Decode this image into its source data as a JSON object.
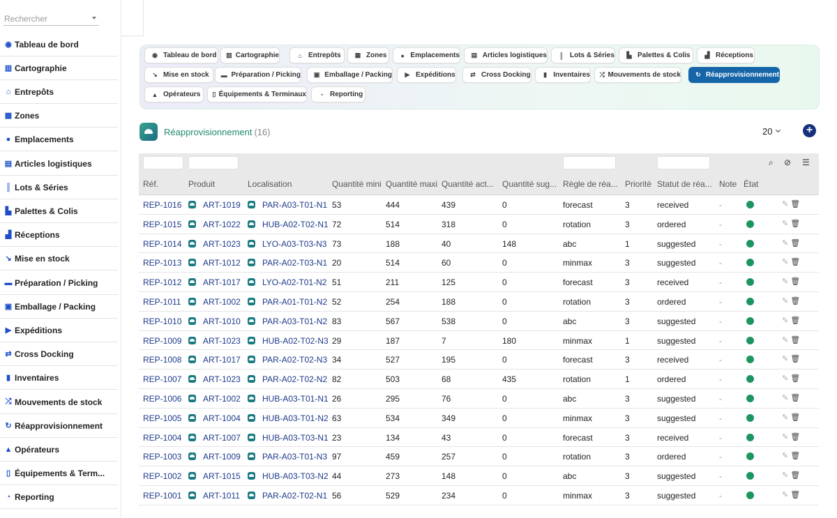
{
  "search": {
    "placeholder": "Rechercher"
  },
  "sidebar": {
    "items": [
      {
        "label": "Tableau de bord",
        "icon": "dashboard-icon",
        "glyph": "◉"
      },
      {
        "label": "Cartographie",
        "icon": "map-icon",
        "glyph": "▥"
      },
      {
        "label": "Entrepôts",
        "icon": "warehouse-icon",
        "glyph": "⌂"
      },
      {
        "label": "Zones",
        "icon": "grid-icon",
        "glyph": "▦"
      },
      {
        "label": "Emplacements",
        "icon": "location-pin-icon",
        "glyph": "●"
      },
      {
        "label": "Articles logistiques",
        "icon": "boxes-icon",
        "glyph": "▤"
      },
      {
        "label": "Lots & Séries",
        "icon": "barcode-icon",
        "glyph": "║"
      },
      {
        "label": "Palettes & Colis",
        "icon": "pallet-icon",
        "glyph": "▙"
      },
      {
        "label": "Réceptions",
        "icon": "truck-ramp-icon",
        "glyph": "▟"
      },
      {
        "label": "Mise en stock",
        "icon": "dolly-icon",
        "glyph": "↘"
      },
      {
        "label": "Préparation / Picking",
        "icon": "pallet-jack-icon",
        "glyph": "▬"
      },
      {
        "label": "Emballage / Packing",
        "icon": "package-icon",
        "glyph": "▣"
      },
      {
        "label": "Expéditions",
        "icon": "truck-icon",
        "glyph": "▶"
      },
      {
        "label": "Cross Docking",
        "icon": "exchange-icon",
        "glyph": "⇄"
      },
      {
        "label": "Inventaires",
        "icon": "clipboard-check-icon",
        "glyph": "▮"
      },
      {
        "label": "Mouvements de stock",
        "icon": "shuffle-icon",
        "glyph": "⤮"
      },
      {
        "label": "Réapprovisionnement",
        "icon": "sync-icon",
        "glyph": "↻"
      },
      {
        "label": "Opérateurs",
        "icon": "operator-icon",
        "glyph": "▲"
      },
      {
        "label": "Équipements & Term...",
        "icon": "mobile-icon",
        "glyph": "▯"
      },
      {
        "label": "Reporting",
        "icon": "pie-chart-icon",
        "glyph": "◔"
      }
    ]
  },
  "tabs": [
    {
      "label": "Tableau de bord",
      "icon": "dashboard-icon",
      "glyph": "◉"
    },
    {
      "label": "Cartographie",
      "icon": "map-icon",
      "glyph": "▥"
    },
    {
      "label": "Entrepôts",
      "icon": "warehouse-icon",
      "glyph": "⌂"
    },
    {
      "label": "Zones",
      "icon": "grid-icon",
      "glyph": "▦"
    },
    {
      "label": "Emplacements",
      "icon": "location-pin-icon",
      "glyph": "●"
    },
    {
      "label": "Articles logistiques",
      "icon": "boxes-icon",
      "glyph": "▤"
    },
    {
      "label": "Lots & Séries",
      "icon": "barcode-icon",
      "glyph": "║"
    },
    {
      "label": "Palettes & Colis",
      "icon": "pallet-icon",
      "glyph": "▙"
    },
    {
      "label": "Réceptions",
      "icon": "truck-ramp-icon",
      "glyph": "▟"
    },
    {
      "label": "Mise en stock",
      "icon": "dolly-icon",
      "glyph": "↘"
    },
    {
      "label": "Préparation / Picking",
      "icon": "pallet-jack-icon",
      "glyph": "▬"
    },
    {
      "label": "Emballage / Packing",
      "icon": "package-icon",
      "glyph": "▣"
    },
    {
      "label": "Expéditions",
      "icon": "truck-icon",
      "glyph": "▶"
    },
    {
      "label": "Cross Docking",
      "icon": "exchange-icon",
      "glyph": "⇄"
    },
    {
      "label": "Inventaires",
      "icon": "clipboard-check-icon",
      "glyph": "▮"
    },
    {
      "label": "Mouvements de stock",
      "icon": "shuffle-icon",
      "glyph": "⤮"
    },
    {
      "label": "Réapprovisionnement",
      "icon": "sync-icon",
      "glyph": "↻",
      "active": true
    },
    {
      "label": "Opérateurs",
      "icon": "operator-icon",
      "glyph": "▲"
    },
    {
      "label": "Équipements & Terminaux",
      "icon": "mobile-icon",
      "glyph": "▯"
    },
    {
      "label": "Reporting",
      "icon": "pie-chart-icon",
      "glyph": "◔"
    }
  ],
  "page": {
    "title": "Réapprovisionnement",
    "count": "(16)",
    "per_page": "20"
  },
  "colors": {
    "accent": "#1565a8",
    "title": "#1f8a70",
    "status_ok": "#1d9560",
    "add_button": "#16307e"
  },
  "table": {
    "columns": [
      "Réf.",
      "Produit",
      "Localisation",
      "Quantité mini",
      "Quantité maxi",
      "Quantité act...",
      "Quantité sug...",
      "Règle de réa...",
      "Priorité",
      "Statut de réa...",
      "Note",
      "État"
    ],
    "rows": [
      {
        "ref": "REP-1016",
        "product": "ART-1019",
        "location": "PAR-A03-T01-N1",
        "min": "53",
        "max": "444",
        "current": "439",
        "suggested": "0",
        "rule": "forecast",
        "priority": "3",
        "status": "received",
        "note": "-"
      },
      {
        "ref": "REP-1015",
        "product": "ART-1022",
        "location": "HUB-A02-T02-N1",
        "min": "72",
        "max": "514",
        "current": "318",
        "suggested": "0",
        "rule": "rotation",
        "priority": "3",
        "status": "ordered",
        "note": "-"
      },
      {
        "ref": "REP-1014",
        "product": "ART-1023",
        "location": "LYO-A03-T03-N3",
        "min": "73",
        "max": "188",
        "current": "40",
        "suggested": "148",
        "rule": "abc",
        "priority": "1",
        "status": "suggested",
        "note": "-"
      },
      {
        "ref": "REP-1013",
        "product": "ART-1012",
        "location": "PAR-A02-T03-N1",
        "min": "20",
        "max": "514",
        "current": "60",
        "suggested": "0",
        "rule": "minmax",
        "priority": "3",
        "status": "suggested",
        "note": "-"
      },
      {
        "ref": "REP-1012",
        "product": "ART-1017",
        "location": "LYO-A02-T01-N2",
        "min": "51",
        "max": "211",
        "current": "125",
        "suggested": "0",
        "rule": "forecast",
        "priority": "3",
        "status": "received",
        "note": "-"
      },
      {
        "ref": "REP-1011",
        "product": "ART-1002",
        "location": "PAR-A01-T01-N2",
        "min": "52",
        "max": "254",
        "current": "188",
        "suggested": "0",
        "rule": "rotation",
        "priority": "3",
        "status": "ordered",
        "note": "-"
      },
      {
        "ref": "REP-1010",
        "product": "ART-1010",
        "location": "PAR-A03-T01-N2",
        "min": "83",
        "max": "567",
        "current": "538",
        "suggested": "0",
        "rule": "abc",
        "priority": "3",
        "status": "suggested",
        "note": "-"
      },
      {
        "ref": "REP-1009",
        "product": "ART-1023",
        "location": "HUB-A02-T02-N3",
        "min": "29",
        "max": "187",
        "current": "7",
        "suggested": "180",
        "rule": "minmax",
        "priority": "1",
        "status": "suggested",
        "note": "-"
      },
      {
        "ref": "REP-1008",
        "product": "ART-1017",
        "location": "PAR-A02-T02-N3",
        "min": "34",
        "max": "527",
        "current": "195",
        "suggested": "0",
        "rule": "forecast",
        "priority": "3",
        "status": "received",
        "note": "-"
      },
      {
        "ref": "REP-1007",
        "product": "ART-1023",
        "location": "PAR-A02-T02-N2",
        "min": "82",
        "max": "503",
        "current": "68",
        "suggested": "435",
        "rule": "rotation",
        "priority": "1",
        "status": "ordered",
        "note": "-"
      },
      {
        "ref": "REP-1006",
        "product": "ART-1002",
        "location": "HUB-A03-T01-N1",
        "min": "26",
        "max": "295",
        "current": "76",
        "suggested": "0",
        "rule": "abc",
        "priority": "3",
        "status": "suggested",
        "note": "-"
      },
      {
        "ref": "REP-1005",
        "product": "ART-1004",
        "location": "HUB-A03-T01-N2",
        "min": "63",
        "max": "534",
        "current": "349",
        "suggested": "0",
        "rule": "minmax",
        "priority": "3",
        "status": "suggested",
        "note": "-"
      },
      {
        "ref": "REP-1004",
        "product": "ART-1007",
        "location": "HUB-A03-T03-N1",
        "min": "23",
        "max": "134",
        "current": "43",
        "suggested": "0",
        "rule": "forecast",
        "priority": "3",
        "status": "received",
        "note": "-"
      },
      {
        "ref": "REP-1003",
        "product": "ART-1009",
        "location": "PAR-A03-T01-N3",
        "min": "97",
        "max": "459",
        "current": "257",
        "suggested": "0",
        "rule": "rotation",
        "priority": "3",
        "status": "ordered",
        "note": "-"
      },
      {
        "ref": "REP-1002",
        "product": "ART-1015",
        "location": "HUB-A03-T03-N2",
        "min": "44",
        "max": "273",
        "current": "148",
        "suggested": "0",
        "rule": "abc",
        "priority": "3",
        "status": "suggested",
        "note": "-"
      },
      {
        "ref": "REP-1001",
        "product": "ART-1011",
        "location": "PAR-A02-T02-N1",
        "min": "56",
        "max": "529",
        "current": "234",
        "suggested": "0",
        "rule": "minmax",
        "priority": "3",
        "status": "suggested",
        "note": "-"
      }
    ]
  }
}
